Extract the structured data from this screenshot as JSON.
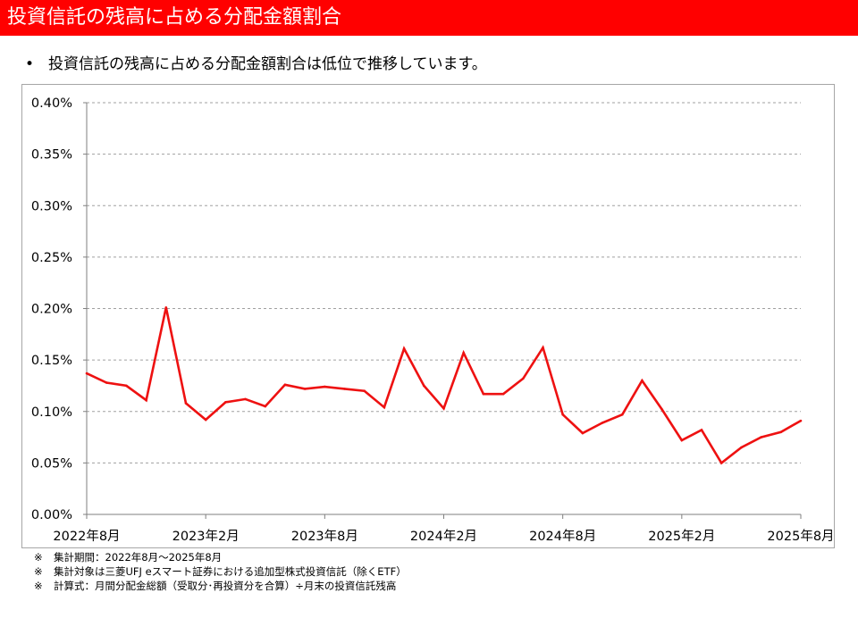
{
  "header": {
    "title": "投資信託の残高に占める分配金額割合",
    "bar_color": "#ff0000"
  },
  "bullet": {
    "symbol": "•",
    "text": "投資信託の残高に占める分配金額割合は低位で推移しています。"
  },
  "chart_data": {
    "type": "line",
    "title": "",
    "xlabel": "",
    "ylabel": "",
    "ylim": [
      0,
      0.4
    ],
    "y_unit": "%",
    "y_ticks": [
      "0.00%",
      "0.05%",
      "0.10%",
      "0.15%",
      "0.20%",
      "0.25%",
      "0.30%",
      "0.35%",
      "0.40%"
    ],
    "grid": true,
    "legend": "none",
    "x_tick_labels": [
      "2022年8月",
      "2023年2月",
      "2023年8月",
      "2024年2月",
      "2024年8月",
      "2025年2月",
      "2025年8月"
    ],
    "categories": [
      "2022-08",
      "2022-09",
      "2022-10",
      "2022-11",
      "2022-12",
      "2023-01",
      "2023-02",
      "2023-03",
      "2023-04",
      "2023-05",
      "2023-06",
      "2023-07",
      "2023-08",
      "2023-09",
      "2023-10",
      "2023-11",
      "2023-12",
      "2024-01",
      "2024-02",
      "2024-03",
      "2024-04",
      "2024-05",
      "2024-06",
      "2024-07",
      "2024-08",
      "2024-09",
      "2024-10",
      "2024-11",
      "2024-12",
      "2025-01",
      "2025-02",
      "2025-03",
      "2025-04",
      "2025-05",
      "2025-06",
      "2025-07",
      "2025-08"
    ],
    "series": [
      {
        "color": "#ee1111",
        "values": [
          0.137,
          0.128,
          0.125,
          0.111,
          0.201,
          0.108,
          0.092,
          0.109,
          0.112,
          0.105,
          0.126,
          0.122,
          0.124,
          0.122,
          0.12,
          0.104,
          0.161,
          0.125,
          0.103,
          0.157,
          0.117,
          0.117,
          0.132,
          0.162,
          0.097,
          0.079,
          0.089,
          0.097,
          0.13,
          0.102,
          0.072,
          0.082,
          0.05,
          0.065,
          0.075,
          0.08,
          0.091
        ]
      }
    ]
  },
  "notes": [
    {
      "mark": "※",
      "text": "集計期間：2022年8月～2025年8月"
    },
    {
      "mark": "※",
      "text": "集計対象は三菱UFJ eスマート証券における追加型株式投資信託（除くETF）"
    },
    {
      "mark": "※",
      "text": "計算式：月間分配金総額（受取分･再投資分を合算）÷月末の投資信託残高"
    }
  ]
}
